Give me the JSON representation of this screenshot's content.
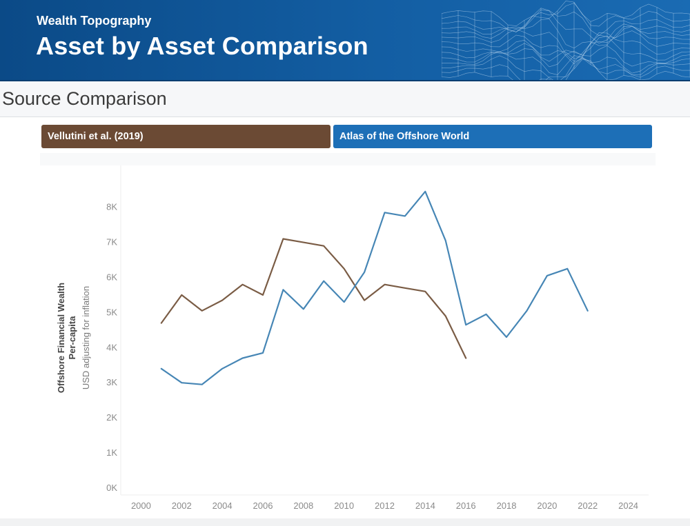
{
  "header": {
    "eyebrow": "Wealth Topography",
    "title": "Asset by Asset Comparison"
  },
  "section": {
    "title": "Source Comparison"
  },
  "tabs": [
    {
      "label": "Vellutini et al. (2019)",
      "color": "#6b4a34"
    },
    {
      "label": "Atlas of the Offshore World",
      "color": "#1d6fb7"
    }
  ],
  "chart_data": {
    "type": "line",
    "title": "",
    "ylabel": "Offshore Financial Wealth",
    "ylabel_line2": "Per-capita",
    "ylabel_sub": "USD adjusting for inflation",
    "xlabel": "",
    "xlim": [
      1999,
      2025
    ],
    "ylim": [
      -200,
      8800
    ],
    "x_ticks": [
      2000,
      2002,
      2004,
      2006,
      2008,
      2010,
      2012,
      2014,
      2016,
      2018,
      2020,
      2022,
      2024
    ],
    "y_ticks": [
      {
        "value": 0,
        "label": "0K"
      },
      {
        "value": 1000,
        "label": "1K"
      },
      {
        "value": 2000,
        "label": "2K"
      },
      {
        "value": 3000,
        "label": "3K"
      },
      {
        "value": 4000,
        "label": "4K"
      },
      {
        "value": 5000,
        "label": "5K"
      },
      {
        "value": 6000,
        "label": "6K"
      },
      {
        "value": 7000,
        "label": "7K"
      },
      {
        "value": 8000,
        "label": "8K"
      }
    ],
    "grid": false,
    "series": [
      {
        "name": "Vellutini et al. (2019)",
        "color": "#7a5c45",
        "x": [
          2001,
          2002,
          2003,
          2004,
          2005,
          2006,
          2007,
          2008,
          2009,
          2010,
          2011,
          2012,
          2013,
          2014,
          2015,
          2016
        ],
        "values": [
          4700,
          5500,
          5050,
          5350,
          5800,
          5500,
          7100,
          7000,
          6900,
          6250,
          5350,
          5800,
          5700,
          5600,
          4900,
          3700
        ]
      },
      {
        "name": "Atlas of the Offshore World",
        "color": "#4686b5",
        "x": [
          2001,
          2002,
          2003,
          2004,
          2005,
          2006,
          2007,
          2008,
          2009,
          2010,
          2011,
          2012,
          2013,
          2014,
          2015,
          2016,
          2017,
          2018,
          2019,
          2020,
          2021,
          2022
        ],
        "values": [
          3400,
          3000,
          2950,
          3400,
          3700,
          3850,
          5650,
          5100,
          5900,
          5300,
          6150,
          7850,
          7750,
          8450,
          7050,
          4650,
          4950,
          4300,
          5050,
          6050,
          6250,
          5050
        ]
      }
    ]
  }
}
